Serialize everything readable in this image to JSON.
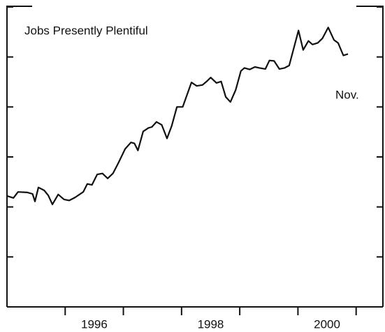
{
  "chart_data": {
    "type": "line",
    "title": "Jobs Presently Plentiful",
    "annotation": "Nov.",
    "x": [
      1995.0,
      1995.11,
      1995.19,
      1995.35,
      1995.44,
      1995.48,
      1995.54,
      1995.64,
      1995.71,
      1995.78,
      1995.88,
      1995.98,
      1996.07,
      1996.17,
      1996.31,
      1996.38,
      1996.46,
      1996.55,
      1996.64,
      1996.73,
      1996.82,
      1996.91,
      1997.03,
      1997.13,
      1997.19,
      1997.25,
      1997.34,
      1997.43,
      1997.49,
      1997.57,
      1997.66,
      1997.75,
      1997.83,
      1997.92,
      1998.02,
      1998.17,
      1998.26,
      1998.36,
      1998.44,
      1998.5,
      1998.6,
      1998.68,
      1998.76,
      1998.84,
      1998.93,
      1999.02,
      1999.08,
      1999.17,
      1999.26,
      1999.34,
      1999.44,
      1999.51,
      1999.59,
      1999.68,
      1999.77,
      1999.85,
      2000.01,
      2000.09,
      2000.18,
      2000.25,
      2000.34,
      2000.42,
      2000.52,
      2000.62,
      2000.69,
      2000.78,
      2000.86
    ],
    "series": [
      {
        "name": "Jobs Presently Plentiful",
        "color": "#111111",
        "values": [
          22.2,
          21.8,
          23.0,
          22.9,
          22.6,
          21.1,
          23.9,
          23.3,
          22.3,
          20.5,
          22.5,
          21.5,
          21.3,
          21.9,
          23.0,
          24.6,
          24.4,
          26.5,
          26.7,
          25.7,
          26.7,
          28.7,
          31.6,
          32.9,
          32.7,
          31.3,
          35.1,
          35.8,
          36.0,
          37.0,
          36.4,
          33.7,
          36.2,
          40.0,
          40.0,
          44.9,
          44.2,
          44.4,
          45.2,
          45.9,
          44.8,
          45.1,
          42.0,
          41.0,
          43.4,
          47.2,
          47.8,
          47.5,
          48.0,
          47.8,
          47.6,
          49.3,
          49.2,
          47.6,
          47.8,
          48.3,
          55.3,
          51.4,
          53.2,
          52.5,
          52.8,
          53.7,
          55.9,
          53.4,
          52.8,
          50.3,
          50.6
        ]
      }
    ],
    "xlim": [
      1995.0,
      2001.46
    ],
    "xticks": [
      1996,
      1997,
      1998,
      1999,
      2000,
      2001
    ],
    "xtick_labels": [
      {
        "value": 1996.5,
        "label": "1996"
      },
      {
        "value": 1998.5,
        "label": "1998"
      },
      {
        "value": 2000.5,
        "label": "2000"
      }
    ],
    "ylim": [
      0,
      60
    ],
    "yticks": [
      0,
      10,
      20,
      30,
      40,
      50,
      60
    ],
    "grid": false
  }
}
